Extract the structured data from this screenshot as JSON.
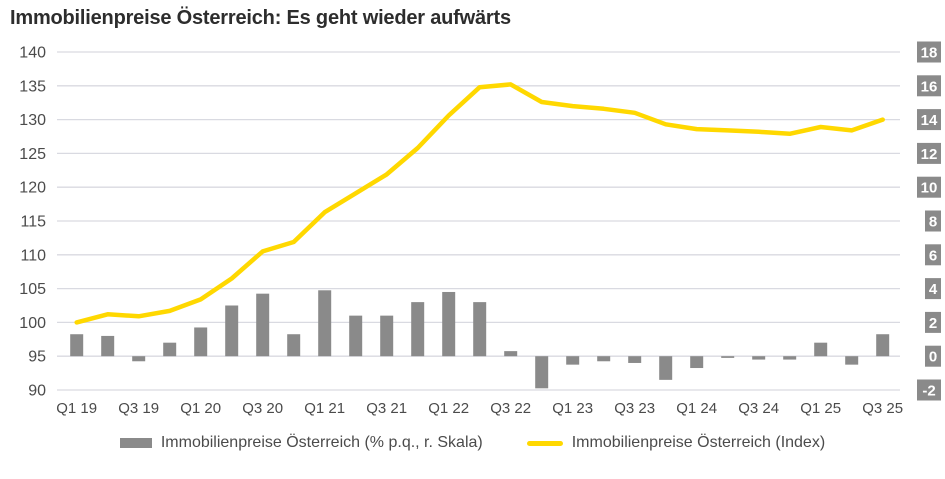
{
  "title": "Immobilienpreise Österreich: Es geht wieder aufwärts",
  "colors": {
    "line": "#ffd800",
    "bar": "#8a8a8a",
    "grid": "#d9dae1",
    "axis_text": "#4b4b4b",
    "badge_bg": "#8a8a8a",
    "badge_text": "#ffffff",
    "title_text": "#2d2d2d"
  },
  "axes": {
    "left_ticks": [
      "140",
      "135",
      "130",
      "125",
      "120",
      "115",
      "110",
      "105",
      "100",
      "95",
      "90"
    ],
    "right_ticks": [
      "18",
      "16",
      "14",
      "12",
      "10",
      "8",
      "6",
      "4",
      "2",
      "0",
      "-2"
    ]
  },
  "legend": [
    {
      "label": "Immobilienpreise Österreich (% p.q., r. Skala)",
      "type": "bar"
    },
    {
      "label": "Immobilienpreise Österreich (Index)",
      "type": "line"
    }
  ],
  "chart_data": {
    "type": "bar+line combo",
    "title": "Immobilienpreise Österreich: Es geht wieder aufwärts",
    "categories": [
      "Q1 19",
      "Q2 19",
      "Q3 19",
      "Q4 19",
      "Q1 20",
      "Q2 20",
      "Q3 20",
      "Q4 20",
      "Q1 21",
      "Q2 21",
      "Q3 21",
      "Q4 21",
      "Q1 22",
      "Q2 22",
      "Q3 22",
      "Q4 22",
      "Q1 23",
      "Q2 23",
      "Q3 23",
      "Q4 23",
      "Q1 24",
      "Q2 24",
      "Q3 24",
      "Q4 24",
      "Q1 25",
      "Q2 25",
      "Q3 25"
    ],
    "x_tick_labels": [
      "Q1 19",
      "Q3 19",
      "Q1 20",
      "Q3 20",
      "Q1 21",
      "Q3 21",
      "Q1 22",
      "Q3 22",
      "Q1 23",
      "Q3 23",
      "Q1 24",
      "Q3 24",
      "Q1 25",
      "Q3 25"
    ],
    "series": [
      {
        "name": "Immobilienpreise Österreich (% p.q., r. Skala)",
        "type": "bar",
        "axis": "right",
        "values": [
          1.3,
          1.2,
          -0.3,
          0.8,
          1.7,
          3.0,
          3.7,
          1.3,
          3.9,
          2.4,
          2.4,
          3.2,
          3.8,
          3.2,
          0.3,
          -1.9,
          -0.5,
          -0.3,
          -0.4,
          -1.4,
          -0.7,
          -0.1,
          -0.2,
          -0.2,
          0.8,
          -0.5,
          1.3
        ]
      },
      {
        "name": "Immobilienpreise Österreich (Index)",
        "type": "line",
        "axis": "left",
        "values": [
          100.0,
          101.2,
          100.9,
          101.7,
          103.4,
          106.5,
          110.5,
          111.9,
          116.3,
          119.1,
          121.9,
          125.8,
          130.6,
          134.8,
          135.2,
          132.6,
          132.0,
          131.6,
          131.0,
          129.3,
          128.6,
          128.4,
          128.2,
          127.9,
          128.9,
          128.4,
          130.0
        ]
      }
    ],
    "left_axis": {
      "min": 90,
      "max": 140,
      "step": 5
    },
    "right_axis": {
      "min": -2,
      "max": 18,
      "step": 2
    },
    "grid": true,
    "legend_position": "bottom"
  }
}
